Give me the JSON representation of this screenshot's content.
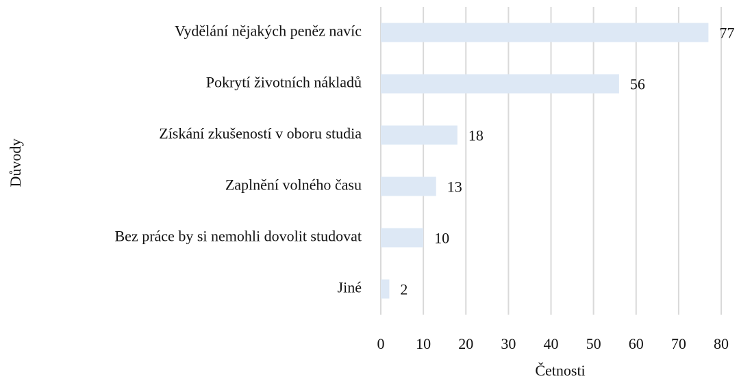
{
  "chart_data": {
    "type": "bar",
    "orientation": "horizontal",
    "x_label": "Četnosti",
    "y_label": "Důvody",
    "categories": [
      "Vydělání nějakých peněz navíc",
      "Pokrytí životních nákladů",
      "Získání zkušeností v oboru studia",
      "Zaplnění volného času",
      "Bez práce by si nemohli dovolit studovat",
      "Jiné"
    ],
    "values": [
      77,
      56,
      18,
      13,
      10,
      2
    ],
    "color": "#dde8f5",
    "xlim": [
      0,
      80
    ],
    "xticks": [
      0,
      10,
      20,
      30,
      40,
      50,
      60,
      70,
      80
    ],
    "grid": true
  }
}
